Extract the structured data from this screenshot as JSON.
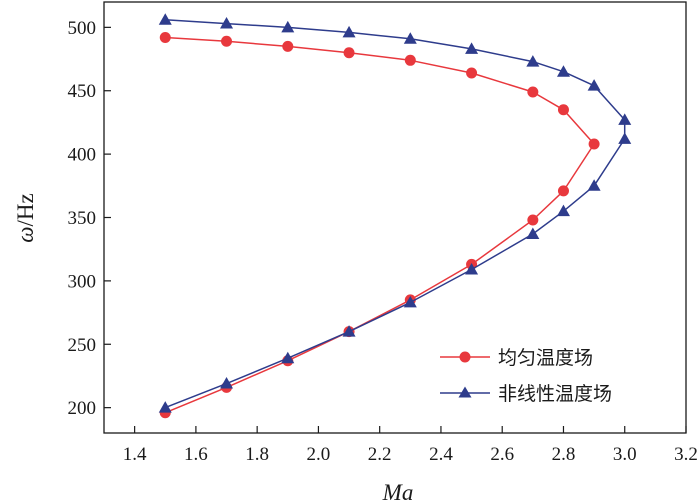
{
  "chart_data": {
    "type": "line",
    "title": "",
    "xlabel": "Ma",
    "ylabel": {
      "symbol": "ω",
      "unit": "/Hz"
    },
    "xlim": [
      1.3,
      3.2
    ],
    "ylim": [
      180,
      520
    ],
    "xticks": [
      "1.4",
      "1.6",
      "1.8",
      "2.0",
      "2.2",
      "2.4",
      "2.6",
      "2.8",
      "3.0",
      "3.2"
    ],
    "yticks": [
      "200",
      "250",
      "300",
      "350",
      "400",
      "450",
      "500"
    ],
    "grid": false,
    "legend_position": "bottom-right",
    "series": [
      {
        "name": "均匀温度场",
        "color": "#e8383d",
        "marker": "circle",
        "points": [
          [
            1.5,
            492
          ],
          [
            1.7,
            489
          ],
          [
            1.9,
            485
          ],
          [
            2.1,
            480
          ],
          [
            2.3,
            474
          ],
          [
            2.5,
            464
          ],
          [
            2.7,
            449
          ],
          [
            2.8,
            435
          ],
          [
            2.9,
            408
          ],
          [
            2.8,
            371
          ],
          [
            2.7,
            348
          ],
          [
            2.5,
            313
          ],
          [
            2.3,
            285
          ],
          [
            2.1,
            260
          ],
          [
            1.9,
            237
          ],
          [
            1.7,
            216
          ],
          [
            1.5,
            196
          ]
        ]
      },
      {
        "name": "非线性温度场",
        "color": "#2e3c8c",
        "marker": "triangle",
        "points": [
          [
            1.5,
            506
          ],
          [
            1.7,
            503
          ],
          [
            1.9,
            500
          ],
          [
            2.1,
            496
          ],
          [
            2.3,
            491
          ],
          [
            2.5,
            483
          ],
          [
            2.7,
            473
          ],
          [
            2.8,
            465
          ],
          [
            2.9,
            454
          ],
          [
            3.0,
            427
          ],
          [
            3.0,
            412
          ],
          [
            2.9,
            375
          ],
          [
            2.8,
            355
          ],
          [
            2.7,
            337
          ],
          [
            2.5,
            309
          ],
          [
            2.3,
            283
          ],
          [
            2.1,
            260
          ],
          [
            1.9,
            239
          ],
          [
            1.7,
            219
          ],
          [
            1.5,
            200
          ]
        ]
      }
    ]
  }
}
